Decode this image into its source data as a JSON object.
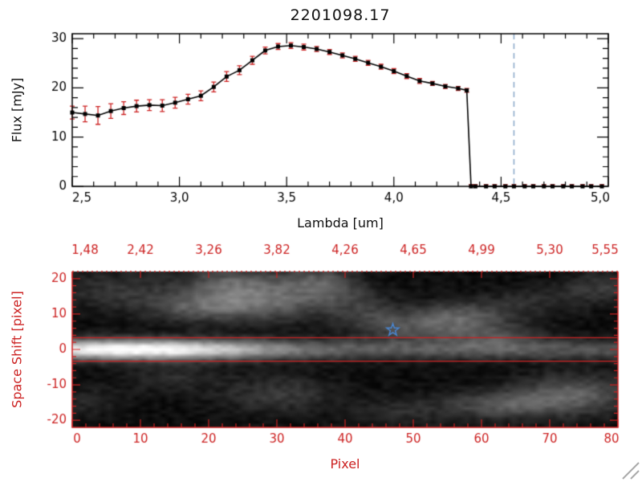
{
  "colors": {
    "axis_red": "#cc2222",
    "spectrum_black": "#000000",
    "errorbar_red": "#cc2222",
    "guide_blue": "#88a8c8",
    "star_blue": "#4a86d0",
    "grip_gray": "#aaaaaa"
  },
  "chart_data": [
    {
      "type": "line",
      "title": "2201098.17",
      "xlabel": "Lambda [um]",
      "ylabel": "Flux [mJy]",
      "xlim": [
        2.5,
        5.0
      ],
      "ylim": [
        0,
        31
      ],
      "marker": "filled-square",
      "grid": false,
      "xticks": {
        "values": [
          2.5,
          3.0,
          3.5,
          4.0,
          4.5,
          5.0
        ],
        "labels": [
          "2,5",
          "3,0",
          "3,5",
          "4,0",
          "4,5",
          "5,0"
        ]
      },
      "yticks": {
        "values": [
          0,
          10,
          20,
          30
        ],
        "labels": [
          "0",
          "10",
          "20",
          "30"
        ]
      },
      "vline": {
        "x": 4.56,
        "style": "dashed"
      },
      "series": [
        {
          "name": "spectrum",
          "x": [
            2.5,
            2.56,
            2.62,
            2.68,
            2.74,
            2.8,
            2.86,
            2.92,
            2.98,
            3.04,
            3.1,
            3.16,
            3.22,
            3.28,
            3.34,
            3.4,
            3.46,
            3.52,
            3.58,
            3.64,
            3.7,
            3.76,
            3.82,
            3.88,
            3.94,
            4.0,
            4.06,
            4.12,
            4.18,
            4.24,
            4.3,
            4.34,
            4.36,
            4.38,
            4.43,
            4.47,
            4.52,
            4.56,
            4.61,
            4.65,
            4.7,
            4.74,
            4.79,
            4.83,
            4.88,
            4.92,
            4.97
          ],
          "y": [
            15.0,
            14.7,
            14.4,
            15.3,
            15.9,
            16.3,
            16.5,
            16.4,
            17.0,
            17.7,
            18.4,
            20.2,
            22.3,
            23.6,
            25.6,
            27.6,
            28.4,
            28.6,
            28.3,
            27.9,
            27.3,
            26.6,
            25.9,
            25.1,
            24.3,
            23.4,
            22.4,
            21.4,
            20.9,
            20.3,
            19.9,
            19.5,
            0,
            0,
            0,
            0,
            0,
            0,
            0,
            0,
            0,
            0,
            0,
            0,
            0,
            0,
            0
          ],
          "yerr": [
            1.3,
            1.6,
            1.8,
            1.5,
            1.3,
            1.2,
            1.1,
            1.2,
            1.1,
            1.0,
            1.0,
            1.0,
            1.0,
            0.9,
            0.8,
            0.7,
            0.6,
            0.6,
            0.6,
            0.5,
            0.5,
            0.5,
            0.5,
            0.5,
            0.5,
            0.5,
            0.5,
            0.5,
            0.4,
            0.4,
            0.4,
            0.4,
            0.35,
            0.35,
            0.35,
            0.35,
            0.35,
            0.35,
            0.35,
            0.35,
            0.35,
            0.35,
            0.35,
            0.35,
            0.35,
            0.35,
            0.35
          ]
        }
      ]
    },
    {
      "type": "heatmap",
      "xlabel": "Pixel",
      "ylabel": "Space Shift [pixel]",
      "xlim": [
        0,
        80
      ],
      "ylim": [
        -22,
        22
      ],
      "xticks": {
        "values": [
          0,
          10,
          20,
          30,
          40,
          50,
          60,
          70,
          80
        ],
        "labels": [
          "0",
          "10",
          "20",
          "30",
          "40",
          "50",
          "60",
          "70",
          "80"
        ]
      },
      "yticks": {
        "values": [
          20,
          10,
          0,
          -10,
          -20
        ],
        "labels": [
          "20",
          "10",
          "0",
          "-10",
          "-20"
        ]
      },
      "top_axis": {
        "values": [
          0,
          10,
          20,
          30,
          40,
          50,
          60,
          70,
          80
        ],
        "labels": [
          "1,48",
          "2,42",
          "3,26",
          "3,82",
          "4,26",
          "4,65",
          "4,99",
          "5,30",
          "5,55"
        ]
      },
      "aperture_lines": [
        3.3,
        -3.3
      ],
      "star_marker": {
        "x": 47,
        "y": 5.5
      },
      "trace": {
        "y_center": 0,
        "peak_x": 9,
        "peak_amp": 0.68,
        "base_amp": 0.3,
        "sigma_x": 14,
        "sigma_y": 2.1
      },
      "blobs": [
        {
          "x": 6,
          "y": 17,
          "rx": 6,
          "ry": 4,
          "i": 0.18
        },
        {
          "x": 17,
          "y": 12,
          "rx": 5,
          "ry": 3,
          "i": 0.22
        },
        {
          "x": 27,
          "y": 14,
          "rx": 7,
          "ry": 4,
          "i": 0.42
        },
        {
          "x": 23,
          "y": 20,
          "rx": 5,
          "ry": 3,
          "i": 0.25
        },
        {
          "x": 36,
          "y": 20,
          "rx": 4,
          "ry": 3,
          "i": 0.28
        },
        {
          "x": 30,
          "y": -13,
          "rx": 6,
          "ry": 4,
          "i": 0.2
        },
        {
          "x": 14,
          "y": -8,
          "rx": 5,
          "ry": 3,
          "i": 0.14
        },
        {
          "x": 44,
          "y": 9,
          "rx": 4,
          "ry": 3,
          "i": 0.18
        },
        {
          "x": 52,
          "y": 6,
          "rx": 6,
          "ry": 3,
          "i": 0.24
        },
        {
          "x": 57,
          "y": 10,
          "rx": 5,
          "ry": 3,
          "i": 0.28
        },
        {
          "x": 63,
          "y": 4,
          "rx": 5,
          "ry": 3,
          "i": 0.2
        },
        {
          "x": 63,
          "y": -16,
          "rx": 6,
          "ry": 3,
          "i": 0.3
        },
        {
          "x": 74,
          "y": -13,
          "rx": 6,
          "ry": 4,
          "i": 0.34
        },
        {
          "x": 78,
          "y": 18,
          "rx": 4,
          "ry": 3,
          "i": 0.2
        },
        {
          "x": 48,
          "y": -18,
          "rx": 5,
          "ry": 3,
          "i": 0.14
        },
        {
          "x": 68,
          "y": 14,
          "rx": 5,
          "ry": 3,
          "i": 0.14
        },
        {
          "x": 40,
          "y": 15,
          "rx": 4,
          "ry": 3,
          "i": 0.16
        },
        {
          "x": 2,
          "y": -15,
          "rx": 4,
          "ry": 3,
          "i": 0.12
        }
      ]
    }
  ]
}
